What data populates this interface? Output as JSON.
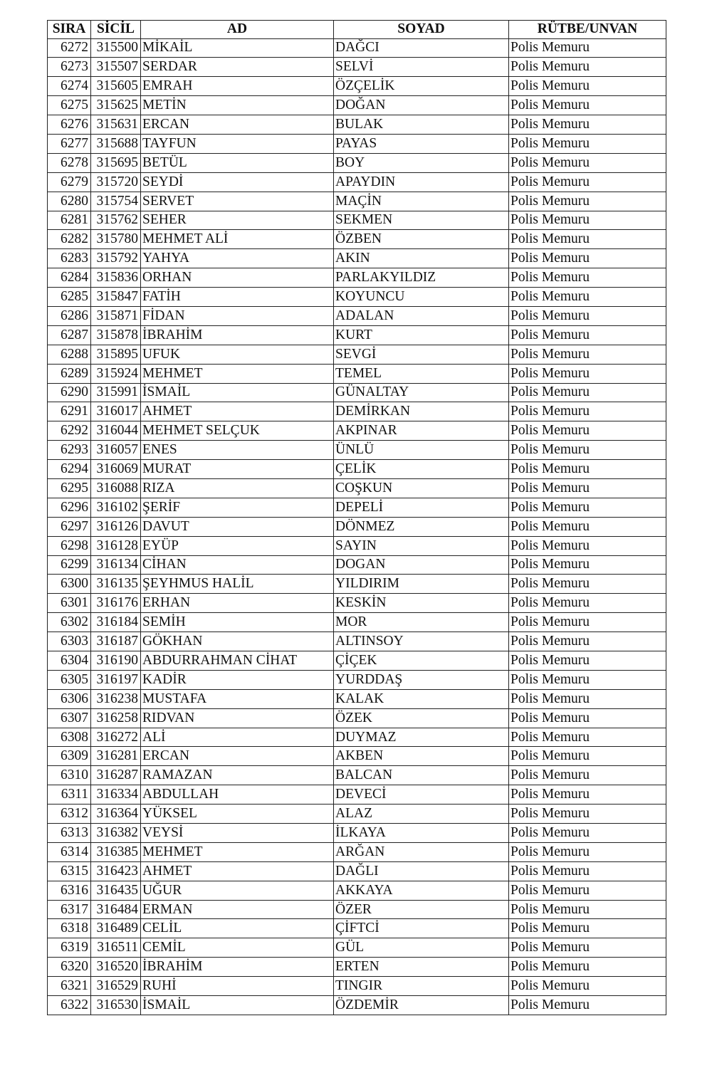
{
  "table": {
    "headers": [
      "SIRA",
      "SİCİL",
      "AD",
      "SOYAD",
      "RÜTBE/UNVAN"
    ],
    "rows": [
      [
        "6272",
        "315500",
        "MİKAİL",
        "DAĞCI",
        "Polis Memuru"
      ],
      [
        "6273",
        "315507",
        "SERDAR",
        "SELVİ",
        "Polis Memuru"
      ],
      [
        "6274",
        "315605",
        "EMRAH",
        "ÖZÇELİK",
        "Polis Memuru"
      ],
      [
        "6275",
        "315625",
        "METİN",
        "DOĞAN",
        "Polis Memuru"
      ],
      [
        "6276",
        "315631",
        "ERCAN",
        "BULAK",
        "Polis Memuru"
      ],
      [
        "6277",
        "315688",
        "TAYFUN",
        "PAYAS",
        "Polis Memuru"
      ],
      [
        "6278",
        "315695",
        "BETÜL",
        "BOY",
        "Polis Memuru"
      ],
      [
        "6279",
        "315720",
        "SEYDİ",
        "APAYDIN",
        "Polis Memuru"
      ],
      [
        "6280",
        "315754",
        "SERVET",
        "MAÇİN",
        "Polis Memuru"
      ],
      [
        "6281",
        "315762",
        "SEHER",
        "SEKMEN",
        "Polis Memuru"
      ],
      [
        "6282",
        "315780",
        "MEHMET ALİ",
        "ÖZBEN",
        "Polis Memuru"
      ],
      [
        "6283",
        "315792",
        "YAHYA",
        "AKIN",
        "Polis Memuru"
      ],
      [
        "6284",
        "315836",
        "ORHAN",
        "PARLAKYILDIZ",
        "Polis Memuru"
      ],
      [
        "6285",
        "315847",
        "FATİH",
        "KOYUNCU",
        "Polis Memuru"
      ],
      [
        "6286",
        "315871",
        "FİDAN",
        "ADALAN",
        "Polis Memuru"
      ],
      [
        "6287",
        "315878",
        "İBRAHİM",
        "KURT",
        "Polis Memuru"
      ],
      [
        "6288",
        "315895",
        "UFUK",
        "SEVGİ",
        "Polis Memuru"
      ],
      [
        "6289",
        "315924",
        "MEHMET",
        "TEMEL",
        "Polis Memuru"
      ],
      [
        "6290",
        "315991",
        "İSMAİL",
        "GÜNALTAY",
        "Polis Memuru"
      ],
      [
        "6291",
        "316017",
        "AHMET",
        "DEMİRKAN",
        "Polis Memuru"
      ],
      [
        "6292",
        "316044",
        "MEHMET SELÇUK",
        "AKPINAR",
        "Polis Memuru"
      ],
      [
        "6293",
        "316057",
        "ENES",
        "ÜNLÜ",
        "Polis Memuru"
      ],
      [
        "6294",
        "316069",
        "MURAT",
        "ÇELİK",
        "Polis Memuru"
      ],
      [
        "6295",
        "316088",
        "RIZA",
        "COŞKUN",
        "Polis Memuru"
      ],
      [
        "6296",
        "316102",
        "ŞERİF",
        "DEPELİ",
        "Polis Memuru"
      ],
      [
        "6297",
        "316126",
        "DAVUT",
        "DÖNMEZ",
        "Polis Memuru"
      ],
      [
        "6298",
        "316128",
        "EYÜP",
        "SAYIN",
        "Polis Memuru"
      ],
      [
        "6299",
        "316134",
        "CİHAN",
        "DOGAN",
        "Polis Memuru"
      ],
      [
        "6300",
        "316135",
        "ŞEYHMUS HALİL",
        "YILDIRIM",
        "Polis Memuru"
      ],
      [
        "6301",
        "316176",
        "ERHAN",
        "KESKİN",
        "Polis Memuru"
      ],
      [
        "6302",
        "316184",
        "SEMİH",
        "MOR",
        "Polis Memuru"
      ],
      [
        "6303",
        "316187",
        "GÖKHAN",
        "ALTINSOY",
        "Polis Memuru"
      ],
      [
        "6304",
        "316190",
        "ABDURRAHMAN CİHAT",
        "ÇİÇEK",
        "Polis Memuru"
      ],
      [
        "6305",
        "316197",
        "KADİR",
        "YURDDAŞ",
        "Polis Memuru"
      ],
      [
        "6306",
        "316238",
        "MUSTAFA",
        "KALAK",
        "Polis Memuru"
      ],
      [
        "6307",
        "316258",
        "RIDVAN",
        "ÖZEK",
        "Polis Memuru"
      ],
      [
        "6308",
        "316272",
        "ALİ",
        "DUYMAZ",
        "Polis Memuru"
      ],
      [
        "6309",
        "316281",
        "ERCAN",
        "AKBEN",
        "Polis Memuru"
      ],
      [
        "6310",
        "316287",
        "RAMAZAN",
        "BALCAN",
        "Polis Memuru"
      ],
      [
        "6311",
        "316334",
        "ABDULLAH",
        "DEVECİ",
        "Polis Memuru"
      ],
      [
        "6312",
        "316364",
        "YÜKSEL",
        "ALAZ",
        "Polis Memuru"
      ],
      [
        "6313",
        "316382",
        "VEYSİ",
        "İLKAYA",
        "Polis Memuru"
      ],
      [
        "6314",
        "316385",
        "MEHMET",
        "ARĞAN",
        "Polis Memuru"
      ],
      [
        "6315",
        "316423",
        "AHMET",
        "DAĞLI",
        "Polis Memuru"
      ],
      [
        "6316",
        "316435",
        "UĞUR",
        "AKKAYA",
        "Polis Memuru"
      ],
      [
        "6317",
        "316484",
        "ERMAN",
        "ÖZER",
        "Polis Memuru"
      ],
      [
        "6318",
        "316489",
        "CELİL",
        "ÇİFTCİ",
        "Polis Memuru"
      ],
      [
        "6319",
        "316511",
        "CEMİL",
        "GÜL",
        "Polis Memuru"
      ],
      [
        "6320",
        "316520",
        "İBRAHİM",
        "ERTEN",
        "Polis Memuru"
      ],
      [
        "6321",
        "316529",
        "RUHİ",
        "TINGIR",
        "Polis Memuru"
      ],
      [
        "6322",
        "316530",
        "İSMAİL",
        "ÖZDEMİR",
        "Polis Memuru"
      ]
    ]
  }
}
